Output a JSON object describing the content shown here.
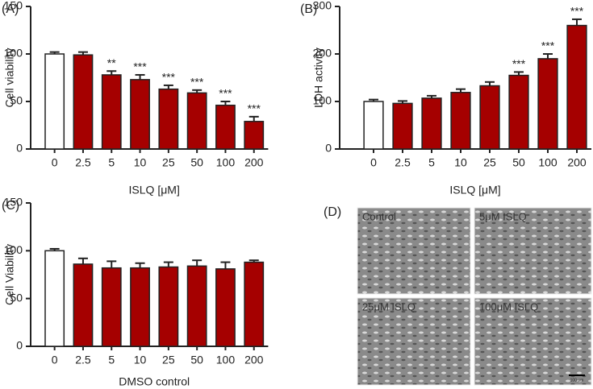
{
  "chart_data": [
    {
      "type": "bar",
      "panel_label": "(A)",
      "y_label": "Cell viability",
      "x_label": "ISLQ [μM]",
      "categories": [
        "0",
        "2.5",
        "5",
        "10",
        "25",
        "50",
        "100",
        "200"
      ],
      "values": [
        100,
        99,
        78,
        73,
        63,
        59,
        46,
        29
      ],
      "errors": [
        2,
        3,
        4,
        5,
        4,
        3,
        4,
        5
      ],
      "significance": [
        null,
        null,
        "**",
        "***",
        "***",
        "***",
        "***",
        "***"
      ],
      "colors": [
        "#ffffff",
        "#a50000",
        "#a50000",
        "#a50000",
        "#a50000",
        "#a50000",
        "#a50000",
        "#a50000"
      ],
      "ylim": [
        0,
        150
      ],
      "yticks": [
        0,
        50,
        100,
        150
      ]
    },
    {
      "type": "bar",
      "panel_label": "(B)",
      "y_label": "LDH activity",
      "x_label": "ISLQ [μM]",
      "categories": [
        "0",
        "2.5",
        "5",
        "10",
        "25",
        "50",
        "100",
        "200"
      ],
      "values": [
        100,
        96,
        107,
        119,
        133,
        155,
        190,
        260
      ],
      "errors": [
        4,
        5,
        5,
        7,
        8,
        7,
        10,
        13
      ],
      "significance": [
        null,
        null,
        null,
        null,
        null,
        "***",
        "***",
        "***"
      ],
      "colors": [
        "#ffffff",
        "#a50000",
        "#a50000",
        "#a50000",
        "#a50000",
        "#a50000",
        "#a50000",
        "#a50000"
      ],
      "ylim": [
        0,
        300
      ],
      "yticks": [
        0,
        100,
        200,
        300
      ]
    },
    {
      "type": "bar",
      "panel_label": "(C)",
      "y_label": "Cell Viability",
      "x_label": "DMSO control",
      "categories": [
        "0",
        "2.5",
        "5",
        "10",
        "25",
        "50",
        "100",
        "200"
      ],
      "values": [
        100,
        86,
        82,
        82,
        83,
        84,
        81,
        88
      ],
      "errors": [
        2,
        6,
        7,
        5,
        5,
        6,
        7,
        2
      ],
      "significance": [
        null,
        null,
        null,
        null,
        null,
        null,
        null,
        null
      ],
      "colors": [
        "#ffffff",
        "#a50000",
        "#a50000",
        "#a50000",
        "#a50000",
        "#a50000",
        "#a50000",
        "#a50000"
      ],
      "ylim": [
        0,
        150
      ],
      "yticks": [
        0,
        50,
        100,
        150
      ]
    }
  ],
  "panel_d": {
    "panel_label": "(D)",
    "images": [
      "Control",
      "5μM ISLQ",
      "25μM ISLQ",
      "100μM ISLQ"
    ],
    "scale_bar": "100 μm"
  }
}
